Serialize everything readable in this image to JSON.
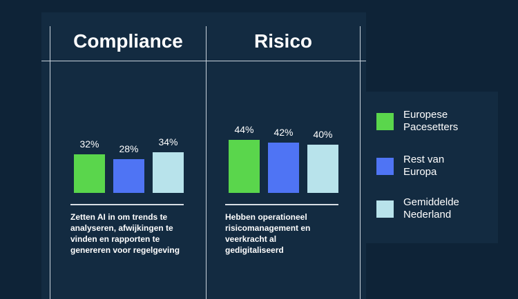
{
  "colors": {
    "pacesetters": "#5ad64c",
    "rest_europe": "#4f74f4",
    "netherlands": "#b8e3eb"
  },
  "sections": [
    {
      "title": "Compliance",
      "values_label": [
        "32%",
        "28%",
        "34%"
      ],
      "description": "Zetten AI in om trends te analyseren, afwijkingen te vinden en  rapporten te genereren voor regelgeving"
    },
    {
      "title": "Risico",
      "values_label": [
        "44%",
        "42%",
        "40%"
      ],
      "description": "Hebben operationeel risicomanagement en veerkracht al gedigitaliseerd"
    }
  ],
  "legend": [
    {
      "line1": "Europese",
      "line2": "Pacesetters"
    },
    {
      "line1": "Rest van",
      "line2": "Europa"
    },
    {
      "line1": "Gemiddelde",
      "line2": "Nederland"
    }
  ],
  "chart_data": {
    "type": "bar",
    "categories": [
      "Compliance",
      "Risico"
    ],
    "series": [
      {
        "name": "Europese Pacesetters",
        "values": [
          32,
          44
        ]
      },
      {
        "name": "Rest van Europa",
        "values": [
          28,
          42
        ]
      },
      {
        "name": "Gemiddelde Nederland",
        "values": [
          34,
          40
        ]
      }
    ],
    "title": "",
    "xlabel": "",
    "ylabel": "",
    "ylim": [
      0,
      60
    ],
    "grid": false,
    "legend_position": "right"
  }
}
